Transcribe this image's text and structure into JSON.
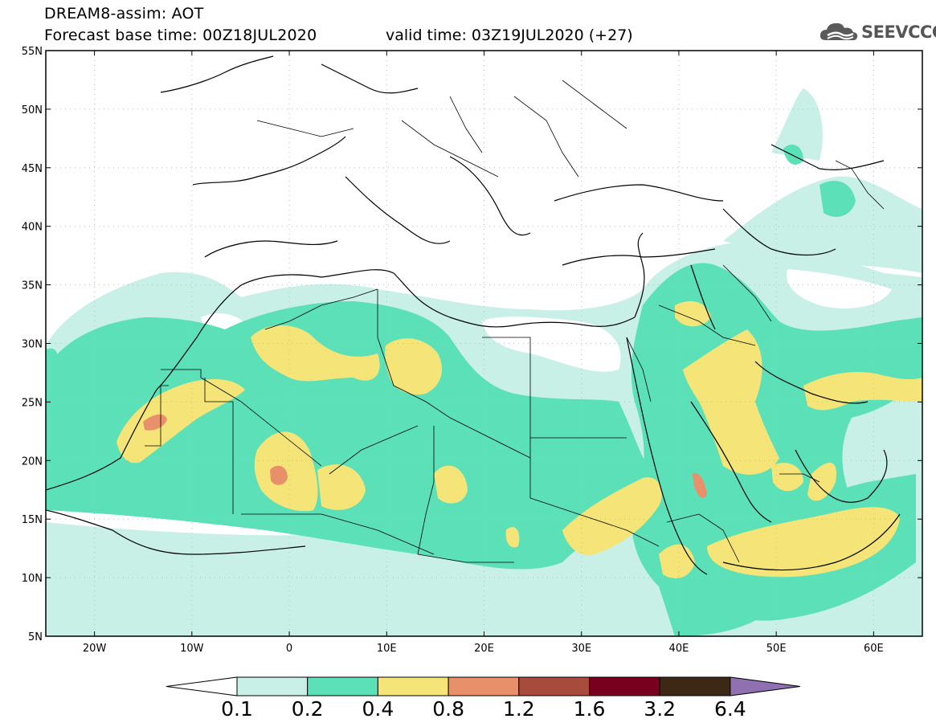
{
  "title": {
    "line1": "DREAM8-assim: AOT",
    "line2": "Forecast base time: 00Z18JUL2020",
    "valid": "valid time: 03Z19JUL2020 (+27)"
  },
  "logo": {
    "text": "SEEVCCC",
    "icon": "cloud-icon"
  },
  "map": {
    "lon_range": [
      -25,
      65
    ],
    "lat_range": [
      5,
      55
    ],
    "lat_ticks": [
      {
        "value": 55,
        "label": "55N"
      },
      {
        "value": 50,
        "label": "50N"
      },
      {
        "value": 45,
        "label": "45N"
      },
      {
        "value": 40,
        "label": "40N"
      },
      {
        "value": 35,
        "label": "35N"
      },
      {
        "value": 30,
        "label": "30N"
      },
      {
        "value": 25,
        "label": "25N"
      },
      {
        "value": 20,
        "label": "20N"
      },
      {
        "value": 15,
        "label": "15N"
      },
      {
        "value": 10,
        "label": "10N"
      },
      {
        "value": 5,
        "label": "5N"
      }
    ],
    "lon_ticks": [
      {
        "value": -20,
        "label": "20W"
      },
      {
        "value": -10,
        "label": "10W"
      },
      {
        "value": 0,
        "label": "0"
      },
      {
        "value": 10,
        "label": "10E"
      },
      {
        "value": 20,
        "label": "20E"
      },
      {
        "value": 30,
        "label": "30E"
      },
      {
        "value": 40,
        "label": "40E"
      },
      {
        "value": 50,
        "label": "50E"
      },
      {
        "value": 60,
        "label": "60E"
      }
    ],
    "grid": true,
    "colors": {
      "c01": "#c8f0e6",
      "c02": "#5ce0b8",
      "c04": "#f5e478",
      "c08": "#e8906a",
      "c12": "#a84a3c",
      "c16": "#78001e",
      "c32": "#3c2814",
      "c64": "#9070b0"
    }
  },
  "colorbar": {
    "labels": [
      "0.1",
      "0.2",
      "0.4",
      "0.8",
      "1.2",
      "1.6",
      "3.2",
      "6.4"
    ],
    "colors": [
      "#c8f0e6",
      "#5ce0b8",
      "#f5e478",
      "#e8906a",
      "#a84a3c",
      "#78001e",
      "#3c2814",
      "#9070b0"
    ],
    "under_color": "#ffffff",
    "over_color": "#9070b0"
  }
}
